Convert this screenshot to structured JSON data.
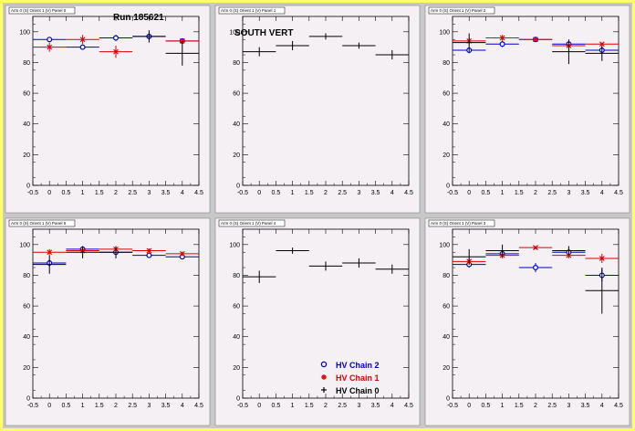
{
  "run_label": "Run 185621",
  "colors": {
    "chain2": "#0000cc",
    "chain1": "#dd0000",
    "chain0": "#000000"
  },
  "legend": [
    {
      "label": "HV Chain 2",
      "series": "chain2",
      "marker": "circle-icon"
    },
    {
      "label": "HV Chain 1",
      "series": "chain1",
      "marker": "star-icon"
    },
    {
      "label": "HV Chain 0",
      "series": "chain0",
      "marker": "plus-icon"
    }
  ],
  "chart_data": [
    {
      "type": "scatter",
      "title": "Arm 0 (S) Orient 1 (V) Panel 0",
      "xlim": [
        -0.5,
        4.5
      ],
      "ylim": [
        0,
        110
      ],
      "xticks": [
        "-0.5",
        "0",
        "0.5",
        "1",
        "1.5",
        "2",
        "2.5",
        "3",
        "3.5",
        "4",
        "4.5"
      ],
      "yticks": [
        "0",
        "20",
        "40",
        "60",
        "80",
        "100"
      ],
      "series": [
        {
          "key": "chain2",
          "points": [
            {
              "x": 0,
              "y": 95,
              "err": 1.5
            },
            {
              "x": 1,
              "y": 90,
              "err": 1.5
            },
            {
              "x": 2,
              "y": 96,
              "err": 2
            },
            {
              "x": 3,
              "y": 97,
              "err": 1.5
            },
            {
              "x": 4,
              "y": 94,
              "err": 1.5
            }
          ]
        },
        {
          "key": "chain1",
          "points": [
            {
              "x": 0,
              "y": 90,
              "err": 3
            },
            {
              "x": 1,
              "y": 95,
              "err": 3
            },
            {
              "x": 2,
              "y": 87,
              "err": 4
            },
            {
              "x": 4,
              "y": 94,
              "err": 1
            }
          ]
        },
        {
          "key": "chain0",
          "points": [
            {
              "x": 3,
              "y": 97,
              "err": 4
            },
            {
              "x": 4,
              "y": 86,
              "err": 8
            }
          ]
        }
      ]
    },
    {
      "type": "scatter",
      "title": "Arm 0 (S) Orient 1 (V) Panel 1",
      "annotation": "SOUTH VERT",
      "xlim": [
        -0.5,
        4.5
      ],
      "ylim": [
        0,
        110
      ],
      "xticks": [
        "-0.5",
        "0",
        "0.5",
        "1",
        "1.5",
        "2",
        "2.5",
        "3",
        "3.5",
        "4",
        "4.5"
      ],
      "yticks": [
        "0",
        "20",
        "40",
        "60",
        "80",
        "100"
      ],
      "series": [
        {
          "key": "chain0",
          "points": [
            {
              "x": 0,
              "y": 87,
              "err": 3
            },
            {
              "x": 1,
              "y": 91,
              "err": 3
            },
            {
              "x": 2,
              "y": 97,
              "err": 2
            },
            {
              "x": 3,
              "y": 91,
              "err": 2
            },
            {
              "x": 4,
              "y": 85,
              "err": 3
            }
          ]
        }
      ]
    },
    {
      "type": "scatter",
      "title": "Arm 0 (S) Orient 1 (V) Panel 2",
      "xlim": [
        -0.5,
        4.5
      ],
      "ylim": [
        0,
        110
      ],
      "xticks": [
        "-0.5",
        "0",
        "0.5",
        "1",
        "1.5",
        "2",
        "2.5",
        "3",
        "3.5",
        "4",
        "4.5"
      ],
      "yticks": [
        "0",
        "20",
        "40",
        "60",
        "80",
        "100"
      ],
      "series": [
        {
          "key": "chain2",
          "points": [
            {
              "x": 0,
              "y": 88,
              "err": 2
            },
            {
              "x": 1,
              "y": 92,
              "err": 2
            },
            {
              "x": 2,
              "y": 95,
              "err": 1.5
            },
            {
              "x": 3,
              "y": 92,
              "err": 1.5
            },
            {
              "x": 4,
              "y": 88,
              "err": 2
            }
          ]
        },
        {
          "key": "chain1",
          "points": [
            {
              "x": 0,
              "y": 94,
              "err": 2
            },
            {
              "x": 1,
              "y": 96,
              "err": 2
            },
            {
              "x": 2,
              "y": 95,
              "err": 1
            },
            {
              "x": 3,
              "y": 91,
              "err": 1
            },
            {
              "x": 4,
              "y": 92,
              "err": 1
            }
          ]
        },
        {
          "key": "chain0",
          "points": [
            {
              "x": 0,
              "y": 93,
              "err": 6
            },
            {
              "x": 3,
              "y": 87,
              "err": 8
            },
            {
              "x": 4,
              "y": 86,
              "err": 5
            }
          ]
        }
      ]
    },
    {
      "type": "scatter",
      "title": "Arm 0 (S) Orient 1 (V) Panel 5",
      "xlim": [
        -0.5,
        4.5
      ],
      "ylim": [
        0,
        110
      ],
      "xticks": [
        "-0.5",
        "0",
        "0.5",
        "1",
        "1.5",
        "2",
        "2.5",
        "3",
        "3.5",
        "4",
        "4.5"
      ],
      "yticks": [
        "0",
        "20",
        "40",
        "60",
        "80",
        "100"
      ],
      "series": [
        {
          "key": "chain2",
          "points": [
            {
              "x": 0,
              "y": 88,
              "err": 2
            },
            {
              "x": 1,
              "y": 97,
              "err": 1.5
            },
            {
              "x": 2,
              "y": 95,
              "err": 1.5
            },
            {
              "x": 3,
              "y": 93,
              "err": 1.5
            },
            {
              "x": 4,
              "y": 92,
              "err": 1.5
            }
          ]
        },
        {
          "key": "chain1",
          "points": [
            {
              "x": 0,
              "y": 95,
              "err": 2
            },
            {
              "x": 1,
              "y": 96,
              "err": 1.5
            },
            {
              "x": 2,
              "y": 97,
              "err": 1.5
            },
            {
              "x": 3,
              "y": 96,
              "err": 1.5
            },
            {
              "x": 4,
              "y": 94,
              "err": 1.5
            }
          ]
        },
        {
          "key": "chain0",
          "points": [
            {
              "x": 0,
              "y": 87,
              "err": 6
            },
            {
              "x": 1,
              "y": 95,
              "err": 4
            },
            {
              "x": 2,
              "y": 95,
              "err": 4
            }
          ]
        }
      ]
    },
    {
      "type": "scatter",
      "title": "Arm 0 (S) Orient 1 (V) Panel 4",
      "xlim": [
        -0.5,
        4.5
      ],
      "ylim": [
        0,
        110
      ],
      "xticks": [
        "-0.5",
        "0",
        "0.5",
        "1",
        "1.5",
        "2",
        "2.5",
        "3",
        "3.5",
        "4",
        "4.5"
      ],
      "yticks": [
        "0",
        "20",
        "40",
        "60",
        "80",
        "100"
      ],
      "series": [
        {
          "key": "chain0",
          "points": [
            {
              "x": 0,
              "y": 79,
              "err": 4
            },
            {
              "x": 1,
              "y": 96,
              "err": 2
            },
            {
              "x": 2,
              "y": 86,
              "err": 3
            },
            {
              "x": 3,
              "y": 88,
              "err": 3
            },
            {
              "x": 4,
              "y": 84,
              "err": 3
            }
          ]
        }
      ]
    },
    {
      "type": "scatter",
      "title": "Arm 0 (S) Orient 1 (V) Panel 3",
      "xlim": [
        -0.5,
        4.5
      ],
      "ylim": [
        0,
        110
      ],
      "xticks": [
        "-0.5",
        "0",
        "0.5",
        "1",
        "1.5",
        "2",
        "2.5",
        "3",
        "3.5",
        "4",
        "4.5"
      ],
      "yticks": [
        "0",
        "20",
        "40",
        "60",
        "80",
        "100"
      ],
      "series": [
        {
          "key": "chain2",
          "points": [
            {
              "x": 0,
              "y": 87,
              "err": 2
            },
            {
              "x": 1,
              "y": 94,
              "err": 2
            },
            {
              "x": 2,
              "y": 85,
              "err": 3
            },
            {
              "x": 3,
              "y": 95,
              "err": 2
            },
            {
              "x": 4,
              "y": 80,
              "err": 4
            }
          ]
        },
        {
          "key": "chain1",
          "points": [
            {
              "x": 0,
              "y": 89,
              "err": 2
            },
            {
              "x": 1,
              "y": 93,
              "err": 2
            },
            {
              "x": 2,
              "y": 98,
              "err": 1
            },
            {
              "x": 3,
              "y": 93,
              "err": 2
            },
            {
              "x": 4,
              "y": 91,
              "err": 3
            }
          ]
        },
        {
          "key": "chain0",
          "points": [
            {
              "x": 0,
              "y": 92,
              "err": 5
            },
            {
              "x": 1,
              "y": 96,
              "err": 4
            },
            {
              "x": 3,
              "y": 96,
              "err": 3
            },
            {
              "x": 4,
              "y": 70,
              "err": 15
            }
          ]
        }
      ]
    }
  ]
}
